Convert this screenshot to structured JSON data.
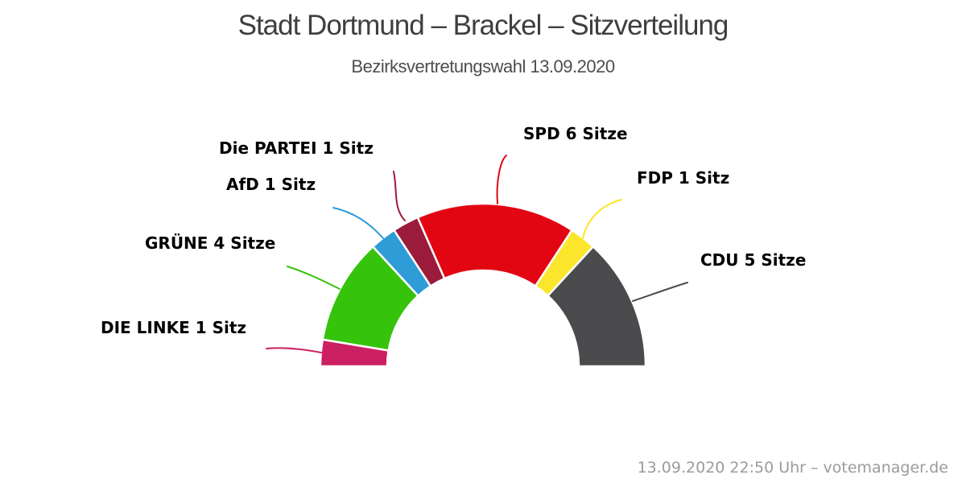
{
  "header": {
    "title": "Stadt Dortmund – Brackel – Sitzverteilung",
    "subtitle": "Bezirksvertretungswahl 13.09.2020"
  },
  "footer": {
    "credit": "13.09.2020 22:50 Uhr – votemanager.de"
  },
  "chart_data": {
    "type": "pie",
    "variant": "half-donut",
    "title": "Stadt Dortmund – Brackel – Sitzverteilung",
    "subtitle": "Bezirksvertretungswahl 13.09.2020",
    "total_seats": 19,
    "start_angle_deg": -90,
    "end_angle_deg": 90,
    "legend_position": "labels-around-arc",
    "background_color": "#ffffff",
    "label_text_color": "#000000",
    "parties": [
      {
        "slug": "die-linke",
        "name": "DIE LINKE",
        "seats": 1,
        "label": "DIE LINKE 1 Sitz",
        "color": "#cb2163"
      },
      {
        "slug": "gruene",
        "name": "GRÜNE",
        "seats": 4,
        "label": "GRÜNE 4 Sitze",
        "color": "#35c30b"
      },
      {
        "slug": "afd",
        "name": "AfD",
        "seats": 1,
        "label": "AfD 1 Sitz",
        "color": "#2e9cd6"
      },
      {
        "slug": "die-partei",
        "name": "Die PARTEI",
        "seats": 1,
        "label": "Die PARTEI 1 Sitz",
        "color": "#9b1c3a"
      },
      {
        "slug": "spd",
        "name": "SPD",
        "seats": 6,
        "label": "SPD 6 Sitze",
        "color": "#e20613"
      },
      {
        "slug": "fdp",
        "name": "FDP",
        "seats": 1,
        "label": "FDP 1 Sitz",
        "color": "#fce62b"
      },
      {
        "slug": "cdu",
        "name": "CDU",
        "seats": 5,
        "label": "CDU 5 Sitze",
        "color": "#4b4b4d"
      }
    ]
  }
}
